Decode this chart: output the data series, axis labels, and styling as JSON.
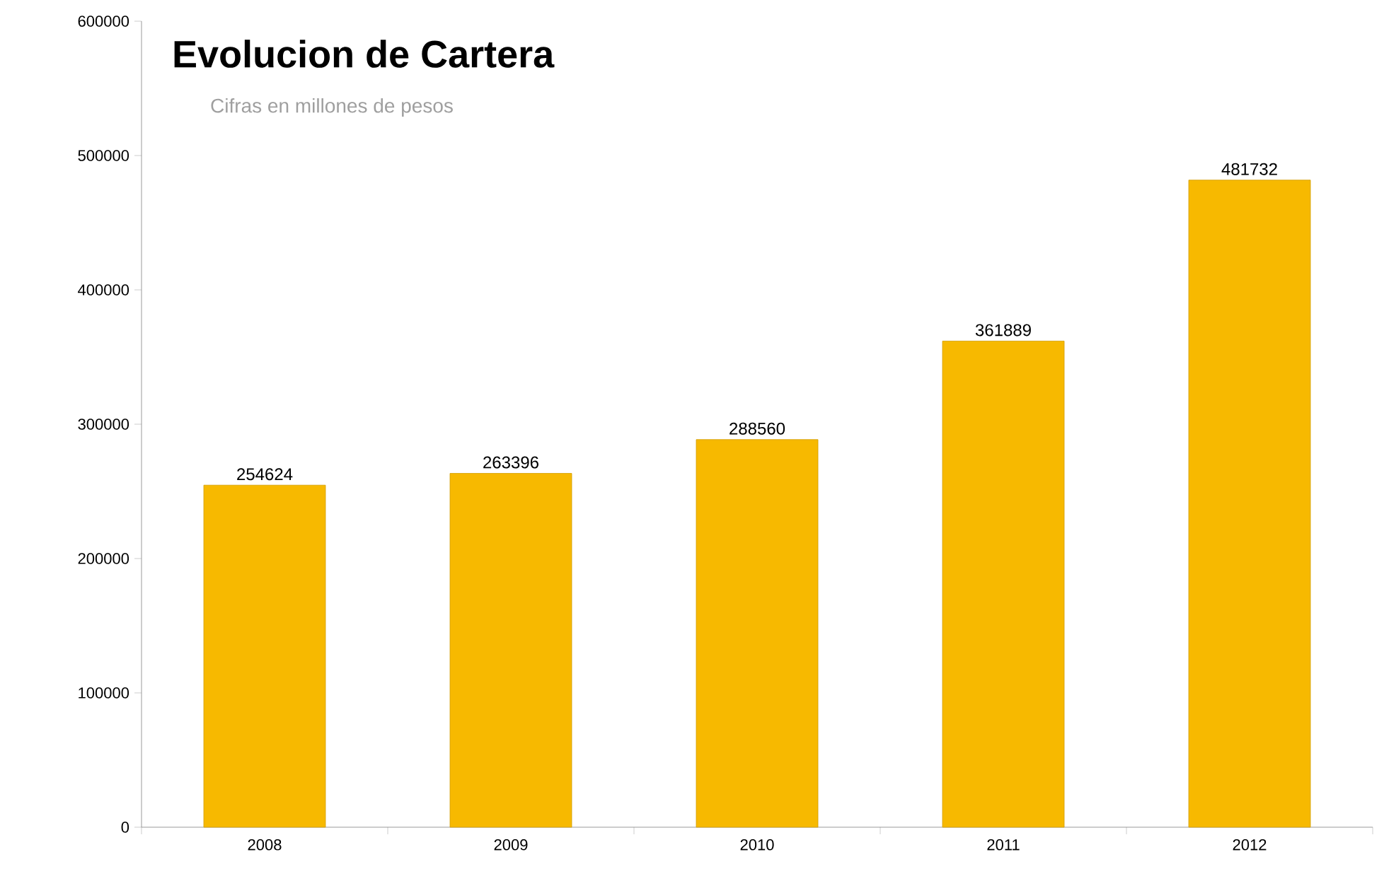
{
  "chart_data": {
    "type": "bar",
    "title": "Evolucion de Cartera",
    "subtitle": "Cifras en millones de pesos",
    "categories": [
      "2008",
      "2009",
      "2010",
      "2011",
      "2012"
    ],
    "values": [
      254624,
      263396,
      288560,
      361889,
      481732
    ],
    "color": "#f7b900",
    "ylim": [
      0,
      600000
    ],
    "yticks": [
      0,
      100000,
      200000,
      300000,
      400000,
      500000,
      600000
    ],
    "data_labels": true,
    "grid": false
  }
}
